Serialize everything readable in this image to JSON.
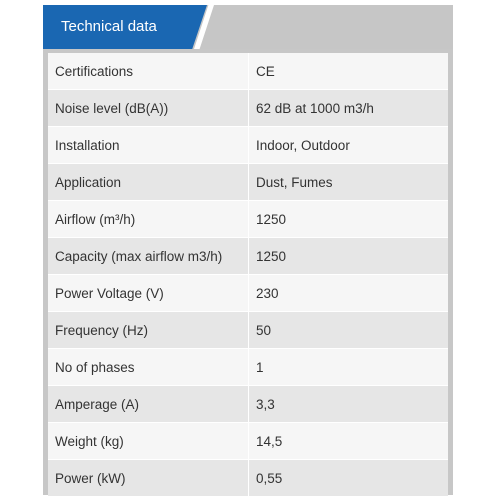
{
  "tab": {
    "label": "Technical data"
  },
  "rows": [
    {
      "label": "Certifications",
      "value": "CE"
    },
    {
      "label": "Noise level (dB(A))",
      "value": "62 dB at 1000 m3/h"
    },
    {
      "label": "Installation",
      "value": "Indoor, Outdoor"
    },
    {
      "label": "Application",
      "value": "Dust, Fumes"
    },
    {
      "label": "Airflow (m³/h)",
      "value": "1250"
    },
    {
      "label": "Capacity (max airflow m3/h)",
      "value": "1250"
    },
    {
      "label": "Power Voltage (V)",
      "value": "230"
    },
    {
      "label": "Frequency (Hz)",
      "value": "50"
    },
    {
      "label": "No of phases",
      "value": "1"
    },
    {
      "label": "Amperage (A)",
      "value": "3,3"
    },
    {
      "label": "Weight (kg)",
      "value": "14,5"
    },
    {
      "label": "Power (kW)",
      "value": "0,55"
    }
  ]
}
